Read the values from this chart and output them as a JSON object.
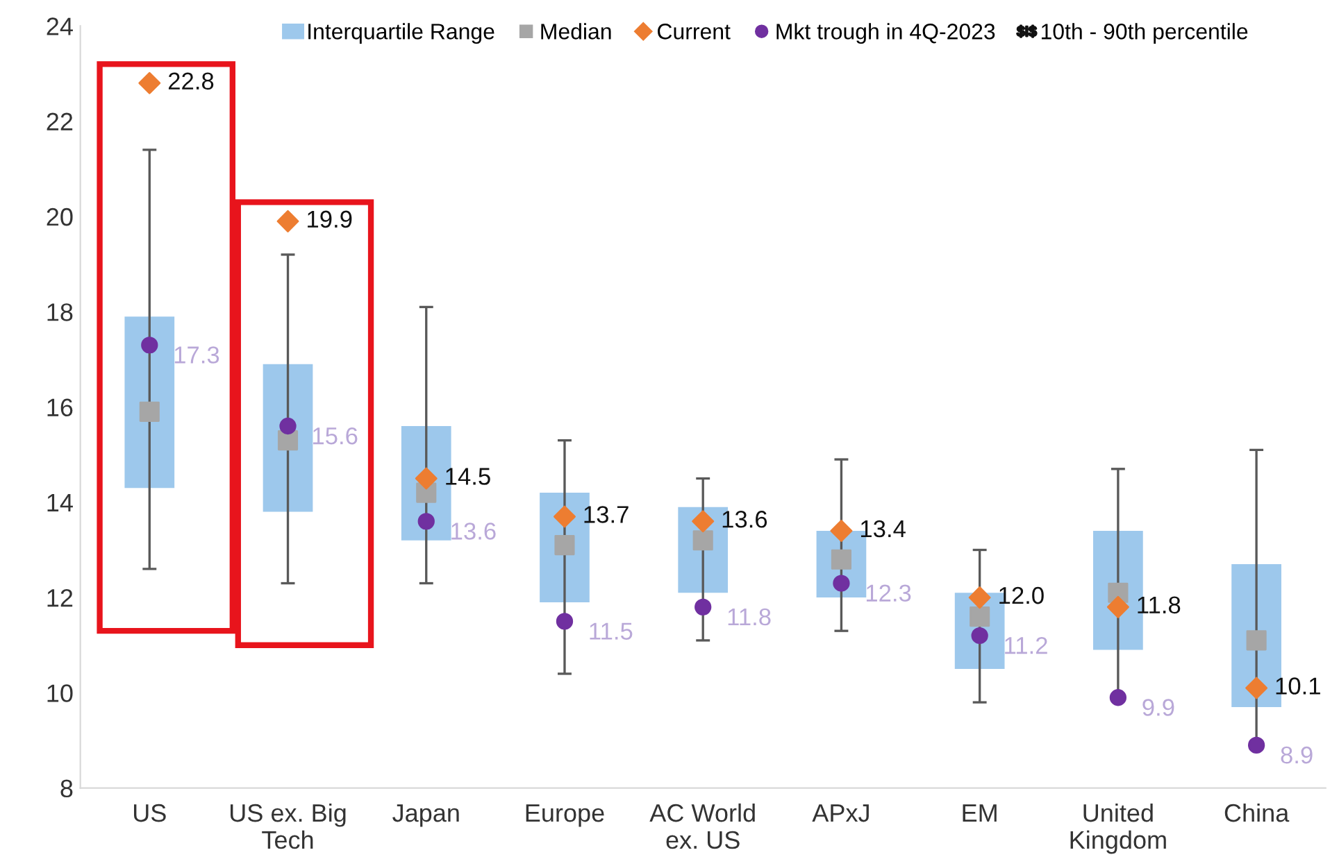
{
  "chart_data": {
    "type": "box",
    "categories": [
      "US",
      "US ex. Big\nTech",
      "Japan",
      "Europe",
      "AC World\nex. US",
      "APxJ",
      "EM",
      "United\nKingdom",
      "China"
    ],
    "ylim": [
      8,
      24
    ],
    "yticks": [
      8,
      10,
      12,
      14,
      16,
      18,
      20,
      22,
      24
    ],
    "grid": false,
    "legend": "top",
    "annotations": [
      "10th - 90th percentile"
    ],
    "series": [
      {
        "name": "Interquartile Range",
        "color": "#9dc8ec",
        "boxes": [
          {
            "low": 12.6,
            "q1": 14.3,
            "q3": 17.9,
            "high": 21.4
          },
          {
            "low": 12.3,
            "q1": 13.8,
            "q3": 16.9,
            "high": 19.2
          },
          {
            "low": 12.3,
            "q1": 13.2,
            "q3": 15.6,
            "high": 18.1
          },
          {
            "low": 10.4,
            "q1": 11.9,
            "q3": 14.2,
            "high": 15.3
          },
          {
            "low": 11.1,
            "q1": 12.1,
            "q3": 13.9,
            "high": 14.5
          },
          {
            "low": 11.3,
            "q1": 12.0,
            "q3": 13.4,
            "high": 14.9
          },
          {
            "low": 9.8,
            "q1": 10.5,
            "q3": 12.1,
            "high": 13.0
          },
          {
            "low": 9.9,
            "q1": 10.9,
            "q3": 13.4,
            "high": 14.7
          },
          {
            "low": 8.9,
            "q1": 9.7,
            "q3": 12.7,
            "high": 15.1
          }
        ]
      },
      {
        "type": "scatter",
        "name": "Median",
        "color": "#a6a6a6",
        "marker": "square",
        "values": [
          15.9,
          15.3,
          14.2,
          13.1,
          13.2,
          12.8,
          11.6,
          12.1,
          11.1
        ]
      },
      {
        "type": "scatter",
        "name": "Current",
        "color": "#ed7d31",
        "marker": "diamond",
        "values": [
          22.8,
          19.9,
          14.5,
          13.7,
          13.6,
          13.4,
          12.0,
          11.8,
          10.1
        ],
        "value_labels": [
          "22.8",
          "19.9",
          "14.5",
          "13.7",
          "13.6",
          "13.4",
          "12.0",
          "11.8",
          "10.1"
        ]
      },
      {
        "type": "scatter",
        "name": "Mkt trough in 4Q-2023",
        "color": "#7030a0",
        "marker": "circle",
        "values": [
          17.3,
          15.6,
          13.6,
          11.5,
          11.8,
          12.3,
          11.2,
          9.9,
          8.9
        ],
        "value_labels": [
          "17.3",
          "15.6",
          "13.6",
          "11.5",
          "11.8",
          "12.3",
          "11.2",
          "9.9",
          "8.9"
        ]
      }
    ]
  }
}
